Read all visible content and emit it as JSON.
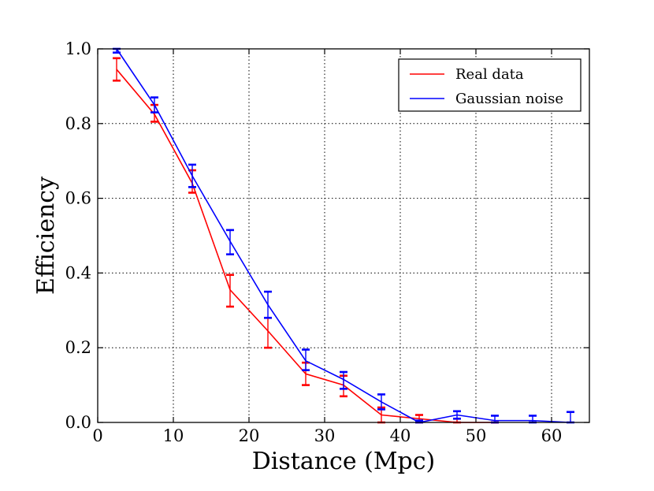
{
  "chart_data": {
    "type": "line",
    "title": "",
    "xlabel": "Distance (Mpc)",
    "ylabel": "Efficiency",
    "xlim": [
      0,
      65
    ],
    "ylim": [
      0.0,
      1.0
    ],
    "xticks": [
      0,
      10,
      20,
      30,
      40,
      50,
      60
    ],
    "xtick_labels": [
      "0",
      "10",
      "20",
      "30",
      "40",
      "50",
      "60"
    ],
    "yticks": [
      0.0,
      0.2,
      0.4,
      0.6,
      0.8,
      1.0
    ],
    "ytick_labels": [
      "0.0",
      "0.2",
      "0.4",
      "0.6",
      "0.8",
      "1.0"
    ],
    "grid": true,
    "legend_position": "top-right",
    "series": [
      {
        "name": "Real data",
        "color": "#ff0000",
        "x": [
          2.5,
          7.5,
          12.5,
          17.5,
          22.5,
          27.5,
          32.5,
          37.5,
          42.5,
          47.5,
          52.5
        ],
        "y": [
          0.945,
          0.825,
          0.64,
          0.355,
          0.245,
          0.13,
          0.1,
          0.02,
          0.01,
          0.0,
          0.0
        ],
        "yerr_low": [
          0.915,
          0.805,
          0.615,
          0.31,
          0.2,
          0.1,
          0.07,
          0.0,
          0.0,
          0.0,
          0.0
        ],
        "yerr_high": [
          0.975,
          0.85,
          0.675,
          0.395,
          0.28,
          0.16,
          0.125,
          0.04,
          0.02,
          0.01,
          0.0
        ]
      },
      {
        "name": "Gaussian noise",
        "color": "#0000ff",
        "x": [
          2.5,
          7.5,
          12.5,
          17.5,
          22.5,
          27.5,
          32.5,
          37.5,
          42.5,
          47.5,
          52.5,
          57.5,
          62.5
        ],
        "y": [
          1.0,
          0.85,
          0.66,
          0.485,
          0.315,
          0.165,
          0.115,
          0.055,
          0.0,
          0.02,
          0.005,
          0.005,
          0.0
        ],
        "yerr_low": [
          0.99,
          0.83,
          0.63,
          0.45,
          0.28,
          0.14,
          0.09,
          0.035,
          0.0,
          0.01,
          0.0,
          0.0,
          0.0
        ],
        "yerr_high": [
          1.0,
          0.87,
          0.69,
          0.515,
          0.35,
          0.195,
          0.135,
          0.075,
          0.005,
          0.03,
          0.018,
          0.018,
          0.028
        ]
      }
    ]
  }
}
